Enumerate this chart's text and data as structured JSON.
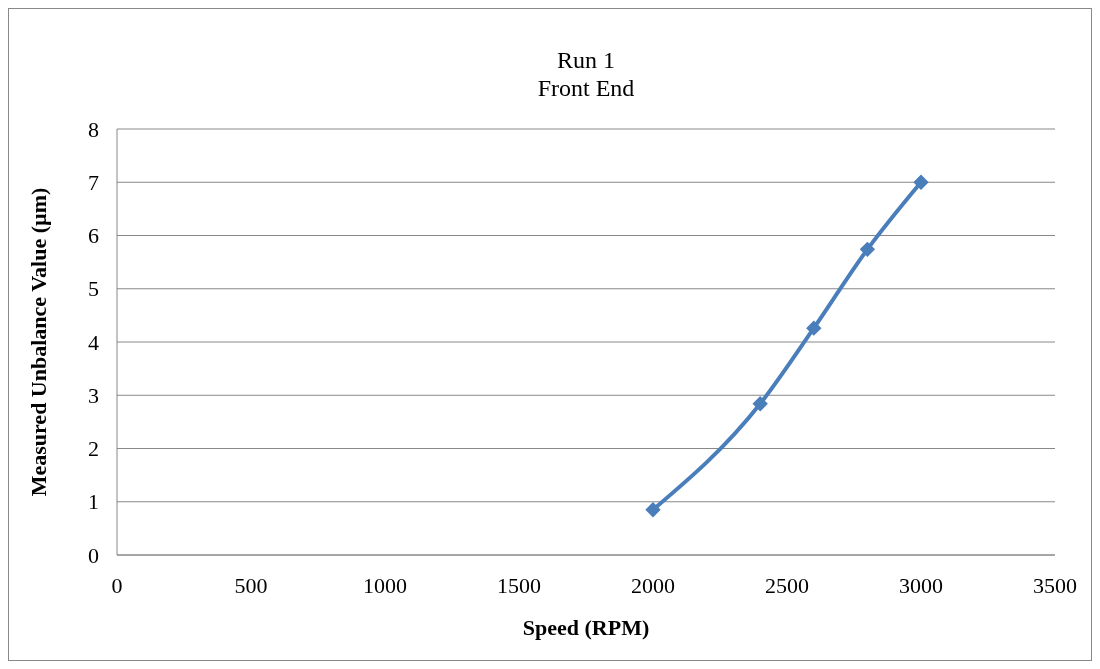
{
  "chart_data": {
    "type": "line",
    "title": "Run 1\nFront End",
    "xlabel": "Speed (RPM)",
    "ylabel": "Measured Unbalance Value (µm)",
    "x": [
      2000,
      2400,
      2600,
      2800,
      3000
    ],
    "series": [
      {
        "color": "#4a7ebb",
        "values": [
          0.85,
          2.84,
          4.26,
          5.74,
          7.0
        ]
      }
    ],
    "xlim": [
      0,
      3500
    ],
    "xticks": [
      0,
      500,
      1000,
      1500,
      2000,
      2500,
      3000,
      3500
    ],
    "ylim": [
      0,
      8
    ],
    "yticks": [
      0,
      1,
      2,
      3,
      4,
      5,
      6,
      7,
      8
    ],
    "grid": "y",
    "marker": "diamond",
    "line_style": "solid"
  }
}
